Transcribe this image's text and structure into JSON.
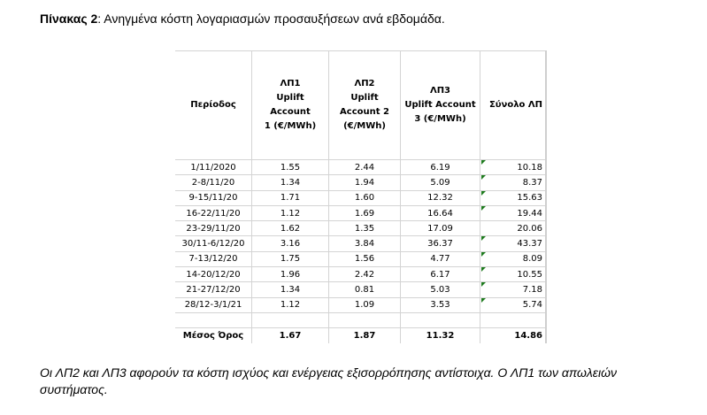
{
  "caption": {
    "label": "Πίνακας 2",
    "text": ": Ανηγμένα κόστη λογαριασμών προσαυξήσεων ανά εβδομάδα."
  },
  "table": {
    "headers": [
      [
        "Περίοδος"
      ],
      [
        "ΛΠ1",
        "Uplift Account",
        "1 (€/MWh)"
      ],
      [
        "ΛΠ2",
        "Uplift",
        "Account 2",
        "(€/MWh)"
      ],
      [
        "ΛΠ3",
        "Uplift Account",
        "3 (€/MWh)"
      ],
      [
        "Σύνολο ΛΠ"
      ]
    ],
    "rows": [
      {
        "cells": [
          "1/11/2020",
          "1.55",
          "2.44",
          "6.19",
          "10.18"
        ],
        "flag": true
      },
      {
        "cells": [
          "2-8/11/20",
          "1.34",
          "1.94",
          "5.09",
          "8.37"
        ],
        "flag": true
      },
      {
        "cells": [
          "9-15/11/20",
          "1.71",
          "1.60",
          "12.32",
          "15.63"
        ],
        "flag": true
      },
      {
        "cells": [
          "16-22/11/20",
          "1.12",
          "1.69",
          "16.64",
          "19.44"
        ],
        "flag": true
      },
      {
        "cells": [
          "23-29/11/20",
          "1.62",
          "1.35",
          "17.09",
          "20.06"
        ],
        "flag": false
      },
      {
        "cells": [
          "30/11-6/12/20",
          "3.16",
          "3.84",
          "36.37",
          "43.37"
        ],
        "flag": true
      },
      {
        "cells": [
          "7-13/12/20",
          "1.75",
          "1.56",
          "4.77",
          "8.09"
        ],
        "flag": true
      },
      {
        "cells": [
          "14-20/12/20",
          "1.96",
          "2.42",
          "6.17",
          "10.55"
        ],
        "flag": true
      },
      {
        "cells": [
          "21-27/12/20",
          "1.34",
          "0.81",
          "5.03",
          "7.18"
        ],
        "flag": true
      },
      {
        "cells": [
          "28/12-3/1/21",
          "1.12",
          "1.09",
          "3.53",
          "5.74"
        ],
        "flag": true
      }
    ],
    "average": [
      "Μέσος Όρος",
      "1.67",
      "1.87",
      "11.32",
      "14.86"
    ]
  },
  "note": "Οι ΛΠ2 και ΛΠ3 αφορούν τα κόστη ισχύος και ενέργειας εξισορρόπησης αντίστοιχα.  Ο ΛΠ1 των απωλειών συστήματος."
}
